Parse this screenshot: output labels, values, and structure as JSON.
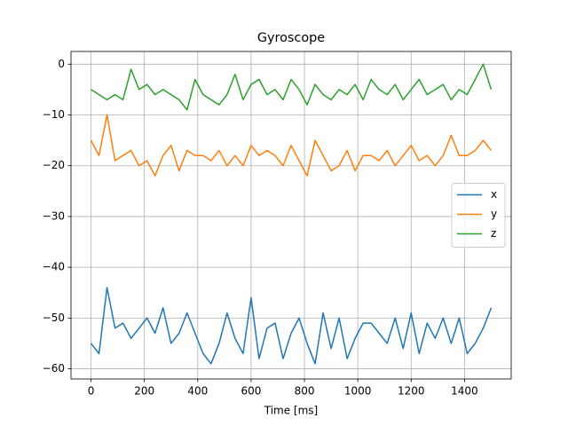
{
  "chart_data": {
    "type": "line",
    "title": "Gyroscope",
    "x_label": "Time [ms]",
    "x": [
      0,
      30,
      60,
      90,
      120,
      150,
      180,
      210,
      240,
      270,
      300,
      330,
      360,
      390,
      420,
      450,
      480,
      510,
      540,
      570,
      600,
      630,
      660,
      690,
      720,
      750,
      780,
      810,
      840,
      870,
      900,
      930,
      960,
      990,
      1020,
      1050,
      1080,
      1110,
      1140,
      1170,
      1200,
      1230,
      1260,
      1290,
      1320,
      1350,
      1380,
      1410,
      1440,
      1470,
      1500
    ],
    "series": [
      {
        "name": "x",
        "color": "#1f77b4",
        "values": [
          -55,
          -57,
          -44,
          -52,
          -51,
          -54,
          -52,
          -50,
          -53,
          -48,
          -55,
          -53,
          -49,
          -53,
          -57,
          -59,
          -55,
          -49,
          -54,
          -57,
          -46,
          -58,
          -52,
          -51,
          -58,
          -53,
          -50,
          -55,
          -59,
          -49,
          -56,
          -50,
          -58,
          -54,
          -51,
          -51,
          -53,
          -55,
          -50,
          -56,
          -49,
          -57,
          -51,
          -54,
          -50,
          -55,
          -50,
          -57,
          -55,
          -52,
          -48
        ]
      },
      {
        "name": "y",
        "color": "#ff7f0e",
        "values": [
          -15,
          -18,
          -10,
          -19,
          -18,
          -17,
          -20,
          -19,
          -22,
          -18,
          -16,
          -21,
          -17,
          -18,
          -18,
          -19,
          -17,
          -20,
          -18,
          -20,
          -16,
          -18,
          -17,
          -18,
          -20,
          -16,
          -19,
          -22,
          -15,
          -18,
          -21,
          -20,
          -17,
          -21,
          -18,
          -18,
          -19,
          -17,
          -20,
          -18,
          -16,
          -19,
          -18,
          -20,
          -18,
          -14,
          -18,
          -18,
          -17,
          -15,
          -17
        ]
      },
      {
        "name": "z",
        "color": "#2ca02c",
        "values": [
          -5,
          -6,
          -7,
          -6,
          -7,
          -1,
          -5,
          -4,
          -6,
          -5,
          -6,
          -7,
          -9,
          -3,
          -6,
          -7,
          -8,
          -6,
          -2,
          -7,
          -4,
          -3,
          -6,
          -5,
          -7,
          -3,
          -5,
          -8,
          -4,
          -6,
          -7,
          -5,
          -6,
          -4,
          -7,
          -3,
          -5,
          -6,
          -4,
          -7,
          -5,
          -3,
          -6,
          -5,
          -4,
          -7,
          -5,
          -6,
          -3,
          0,
          -5
        ]
      }
    ],
    "xlim": [
      -75,
      1575
    ],
    "ylim": [
      -62,
      2.5
    ],
    "xticks": [
      0,
      200,
      400,
      600,
      800,
      1000,
      1200,
      1400
    ],
    "yticks": [
      {
        "value": -60,
        "label": "−60"
      },
      {
        "value": -50,
        "label": "−50"
      },
      {
        "value": -40,
        "label": "−40"
      },
      {
        "value": -30,
        "label": "−30"
      },
      {
        "value": -20,
        "label": "−20"
      },
      {
        "value": -10,
        "label": "−10"
      },
      0
    ],
    "grid": true,
    "legend": "right"
  }
}
